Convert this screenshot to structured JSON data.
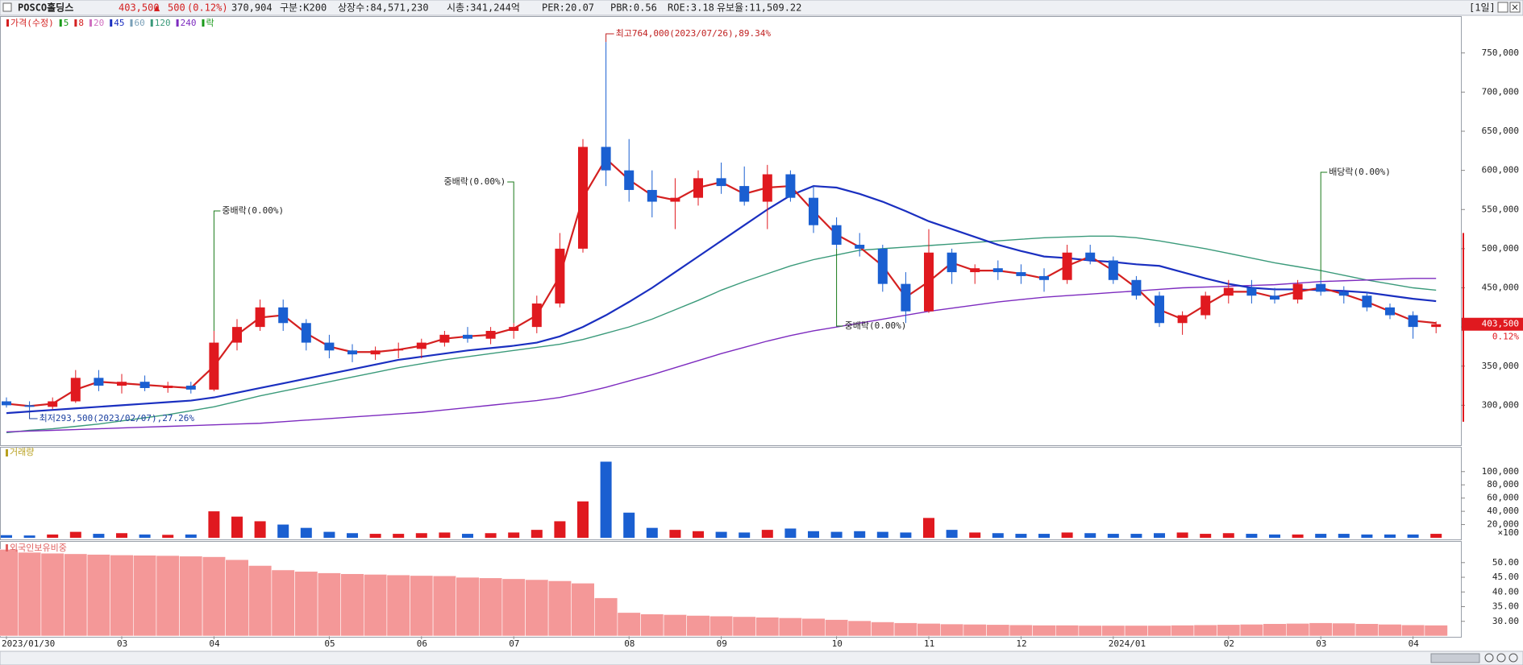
{
  "header": {
    "name": "POSCO홀딩스",
    "price": "403,500",
    "arrow": "▲",
    "change": "500",
    "change_pct": "(0.12%)",
    "volume": "370,904",
    "group": "구분:K200",
    "shares": "상장수:84,571,230",
    "cap": "시총:341,244억",
    "per": "PER:20.07",
    "pbr": "PBR:0.56",
    "roe": "ROE:3.18",
    "reserve": "유보율:11,509.22",
    "period": "[1일]"
  },
  "chart_data": [
    {
      "type": "candlestick",
      "legend": [
        "가격(수정)",
        "5",
        "8",
        "20",
        "45",
        "60",
        "120",
        "240",
        "락"
      ],
      "legend_colors": [
        "#d42020",
        "#1a9a1a",
        "#d42020",
        "#d070c0",
        "#1a2fc0",
        "#7aa0b8",
        "#3a9a7a",
        "#7d2bbf",
        "#1a9a1a"
      ],
      "up_color": "#e0191f",
      "down_color": "#1a5fd1",
      "categories": [
        "2023/01/30",
        null,
        null,
        null,
        null,
        "03",
        null,
        null,
        null,
        "04",
        null,
        null,
        null,
        null,
        "05",
        null,
        null,
        null,
        "06",
        null,
        null,
        null,
        "07",
        null,
        null,
        null,
        null,
        "08",
        null,
        null,
        null,
        "09",
        null,
        null,
        null,
        null,
        "10",
        null,
        null,
        null,
        "11",
        null,
        null,
        null,
        "12",
        null,
        null,
        null,
        "2024/01",
        null,
        null,
        null,
        null,
        "02",
        null,
        null,
        null,
        "03",
        null,
        null,
        null,
        "04",
        null
      ],
      "open": [
        305000,
        300000,
        298000,
        305000,
        335000,
        325000,
        330000,
        322000,
        325000,
        320000,
        380000,
        400000,
        425000,
        405000,
        380000,
        370000,
        365000,
        370000,
        372000,
        380000,
        390000,
        385000,
        395000,
        400000,
        430000,
        500000,
        630000,
        600000,
        575000,
        560000,
        565000,
        590000,
        580000,
        560000,
        595000,
        565000,
        530000,
        505000,
        500000,
        455000,
        420000,
        495000,
        470000,
        475000,
        470000,
        465000,
        460000,
        495000,
        485000,
        460000,
        440000,
        405000,
        415000,
        440000,
        450000,
        440000,
        435000,
        455000,
        445000,
        440000,
        425000,
        415000,
        400000
      ],
      "high": [
        310000,
        305000,
        310000,
        345000,
        345000,
        340000,
        338000,
        330000,
        330000,
        395000,
        410000,
        435000,
        435000,
        410000,
        390000,
        378000,
        375000,
        380000,
        385000,
        395000,
        400000,
        400000,
        405000,
        440000,
        520000,
        640000,
        764000,
        640000,
        600000,
        590000,
        600000,
        610000,
        605000,
        607000,
        600000,
        580000,
        540000,
        520000,
        505000,
        470000,
        525000,
        500000,
        480000,
        485000,
        480000,
        475000,
        505000,
        505000,
        490000,
        465000,
        445000,
        420000,
        445000,
        460000,
        460000,
        450000,
        460000,
        460000,
        452000,
        445000,
        430000,
        420000,
        407000
      ],
      "low": [
        297000,
        293500,
        295000,
        303000,
        318000,
        315000,
        318000,
        316000,
        315000,
        318000,
        370000,
        395000,
        395000,
        370000,
        360000,
        355000,
        358000,
        360000,
        360000,
        375000,
        380000,
        378000,
        385000,
        392000,
        425000,
        495000,
        580000,
        560000,
        540000,
        525000,
        555000,
        570000,
        555000,
        525000,
        560000,
        520000,
        500000,
        490000,
        445000,
        405000,
        418000,
        455000,
        455000,
        460000,
        455000,
        445000,
        455000,
        480000,
        455000,
        435000,
        400000,
        390000,
        410000,
        430000,
        430000,
        430000,
        430000,
        440000,
        430000,
        420000,
        410000,
        385000,
        392000
      ],
      "close": [
        300000,
        298000,
        305000,
        335000,
        325000,
        330000,
        322000,
        325000,
        320000,
        380000,
        400000,
        425000,
        405000,
        380000,
        370000,
        365000,
        370000,
        372000,
        380000,
        390000,
        385000,
        395000,
        400000,
        430000,
        500000,
        630000,
        600000,
        575000,
        560000,
        565000,
        590000,
        580000,
        560000,
        595000,
        565000,
        530000,
        505000,
        500000,
        455000,
        420000,
        495000,
        470000,
        475000,
        470000,
        465000,
        460000,
        495000,
        485000,
        460000,
        440000,
        405000,
        415000,
        440000,
        450000,
        440000,
        435000,
        455000,
        445000,
        440000,
        425000,
        415000,
        400000,
        403500
      ],
      "series": [
        {
          "name": "120",
          "color": "#3a9a7a",
          "values": [
            265000,
            268000,
            270000,
            273000,
            276000,
            280000,
            284000,
            288000,
            293000,
            298000,
            305000,
            312000,
            318000,
            324000,
            330000,
            336000,
            342000,
            348000,
            353000,
            358000,
            362000,
            366000,
            370000,
            374000,
            378000,
            384000,
            392000,
            400000,
            410000,
            422000,
            434000,
            447000,
            458000,
            468000,
            478000,
            486000,
            492000,
            498000,
            500000,
            502000,
            504000,
            506000,
            508000,
            510000,
            512000,
            514000,
            515000,
            516000,
            516000,
            514000,
            510000,
            505000,
            500000,
            494000,
            488000,
            482000,
            477000,
            472000,
            466000,
            460000,
            455000,
            450000,
            447000
          ]
        },
        {
          "name": "240",
          "color": "#7d2bbf",
          "values": [
            266000,
            267000,
            268000,
            269000,
            270000,
            271000,
            272000,
            273000,
            274000,
            275000,
            276000,
            277000,
            279000,
            281000,
            283000,
            285000,
            287000,
            289000,
            291000,
            294000,
            297000,
            300000,
            303000,
            306000,
            310000,
            316000,
            323000,
            331000,
            339000,
            348000,
            357000,
            366000,
            374000,
            382000,
            389000,
            395000,
            400000,
            405000,
            410000,
            415000,
            420000,
            424000,
            428000,
            432000,
            435000,
            438000,
            440000,
            442000,
            444000,
            446000,
            448000,
            450000,
            451000,
            452000,
            453000,
            454000,
            456000,
            458000,
            459000,
            460000,
            461000,
            462000,
            462000
          ]
        },
        {
          "name": "45",
          "color": "#1a2fc0",
          "values": [
            290000,
            292000,
            294000,
            296000,
            298000,
            300000,
            302000,
            304000,
            306000,
            310000,
            316000,
            322000,
            328000,
            334000,
            340000,
            346000,
            352000,
            358000,
            362000,
            366000,
            370000,
            373000,
            376000,
            380000,
            388000,
            400000,
            415000,
            432000,
            450000,
            470000,
            490000,
            510000,
            530000,
            550000,
            568000,
            580000,
            578000,
            570000,
            560000,
            548000,
            535000,
            525000,
            515000,
            505000,
            497000,
            490000,
            488000,
            485000,
            483000,
            480000,
            478000,
            470000,
            462000,
            455000,
            450000,
            448000,
            448000,
            447000,
            446000,
            444000,
            440000,
            436000,
            433000
          ]
        },
        {
          "name": "8",
          "color": "#d42020",
          "values": [
            302000,
            299000,
            302000,
            320000,
            330000,
            328000,
            326000,
            324000,
            322000,
            350000,
            390000,
            412000,
            415000,
            392000,
            375000,
            368000,
            368000,
            371000,
            376000,
            385000,
            388000,
            390000,
            398000,
            415000,
            465000,
            565000,
            615000,
            588000,
            568000,
            562000,
            578000,
            585000,
            570000,
            578000,
            580000,
            548000,
            518000,
            502000,
            478000,
            438000,
            458000,
            482000,
            472000,
            472000,
            468000,
            462000,
            478000,
            490000,
            472000,
            450000,
            422000,
            410000,
            428000,
            445000,
            445000,
            438000,
            445000,
            450000,
            442000,
            432000,
            420000,
            408000,
            405000
          ]
        }
      ],
      "annotations": [
        "최고764,000(2023/07/26),89.34%",
        "최저293,500(2023/02/07),27.26%",
        "중배락(0.00%)",
        "중배락(0.00%)",
        "중배락(0.00%)",
        "배당락(0.00%)"
      ],
      "price_tag": "403,500",
      "change_tag": "0.12%",
      "ylim": [
        250000,
        795000
      ],
      "yticks": [
        {
          "value": 300000,
          "label": "300,000"
        },
        {
          "value": 350000,
          "label": "350,000"
        },
        {
          "value": 400000,
          "label": "400,000"
        },
        {
          "value": 450000,
          "label": "450,000"
        },
        {
          "value": 500000,
          "label": "500,000"
        },
        {
          "value": 550000,
          "label": "550,000"
        },
        {
          "value": 600000,
          "label": "600,000"
        },
        {
          "value": 650000,
          "label": "650,000"
        },
        {
          "value": 700000,
          "label": "700,000"
        },
        {
          "value": 750000,
          "label": "750,000"
        }
      ]
    },
    {
      "type": "bar",
      "title": "거래량",
      "unit": "×100",
      "values": [
        4000,
        3500,
        5000,
        9000,
        6000,
        7000,
        5000,
        4500,
        5000,
        40000,
        32000,
        25000,
        20000,
        15000,
        9000,
        7000,
        6000,
        6000,
        7000,
        8000,
        6000,
        7000,
        8000,
        12000,
        25000,
        55000,
        115000,
        38000,
        15000,
        12000,
        10000,
        9000,
        8000,
        12000,
        14000,
        10000,
        9000,
        10000,
        9000,
        8000,
        30000,
        12000,
        8000,
        7000,
        6000,
        6000,
        8000,
        7000,
        6000,
        6000,
        7000,
        8000,
        6000,
        7000,
        6000,
        5000,
        5000,
        6000,
        6000,
        5000,
        5000,
        5000,
        6000
      ],
      "ylim": [
        0,
        135000
      ],
      "yticks": [
        {
          "value": 20000,
          "label": "20,000"
        },
        {
          "value": 40000,
          "label": "40,000"
        },
        {
          "value": 60000,
          "label": "60,000"
        },
        {
          "value": 80000,
          "label": "80,000"
        },
        {
          "value": 100000,
          "label": "100,000"
        }
      ]
    },
    {
      "type": "area-bar",
      "title": "외국인보유비중",
      "color": "#f49898",
      "values": [
        54.5,
        53.5,
        53.2,
        53.0,
        52.8,
        52.6,
        52.5,
        52.4,
        52.2,
        52.0,
        51.0,
        49.0,
        47.5,
        47.0,
        46.5,
        46.2,
        46.0,
        45.8,
        45.6,
        45.5,
        45.0,
        44.8,
        44.5,
        44.2,
        43.8,
        43.0,
        38.0,
        33.0,
        32.5,
        32.3,
        32.0,
        31.8,
        31.6,
        31.4,
        31.2,
        31.0,
        30.6,
        30.2,
        29.8,
        29.5,
        29.3,
        29.1,
        29.0,
        28.9,
        28.8,
        28.7,
        28.7,
        28.6,
        28.6,
        28.6,
        28.6,
        28.7,
        28.8,
        28.9,
        29.0,
        29.2,
        29.3,
        29.5,
        29.4,
        29.2,
        29.0,
        28.8,
        28.7
      ],
      "ylim": [
        25,
        56.8
      ],
      "yticks": [
        {
          "value": 30,
          "label": "30.00"
        },
        {
          "value": 35,
          "label": "35.00"
        },
        {
          "value": 40,
          "label": "40.00"
        },
        {
          "value": 45,
          "label": "45.00"
        },
        {
          "value": 50,
          "label": "50.00"
        }
      ]
    }
  ]
}
